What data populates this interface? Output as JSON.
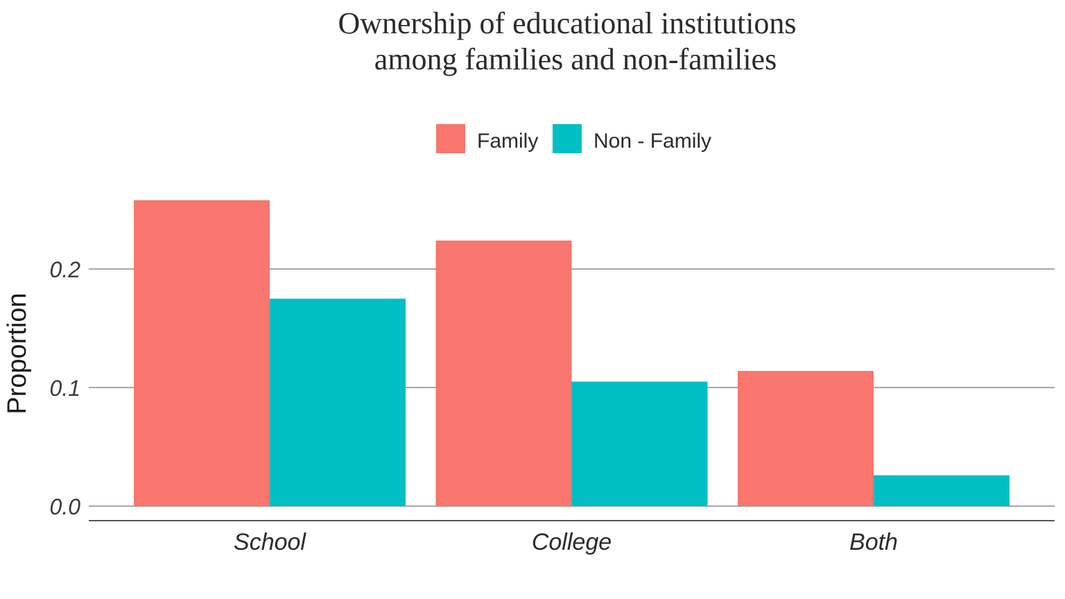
{
  "chart_data": {
    "type": "bar",
    "title_line1": "Ownership of educational institutions",
    "title_line2": "among families and non-families",
    "xlabel": "",
    "ylabel": "Proportion",
    "categories": [
      "School",
      "College",
      "Both"
    ],
    "series": [
      {
        "name": "Family",
        "color": "#F8766D",
        "values": [
          0.258,
          0.224,
          0.114
        ]
      },
      {
        "name": "Non - Family",
        "color": "#00BFC4",
        "values": [
          0.175,
          0.105,
          0.026
        ]
      }
    ],
    "ylim": [
      0,
      0.26
    ],
    "yticks": [
      0.0,
      0.1,
      0.2
    ],
    "ytick_labels": [
      "0.0",
      "0.1",
      "0.2"
    ],
    "grid": true,
    "legend_position": "top"
  }
}
